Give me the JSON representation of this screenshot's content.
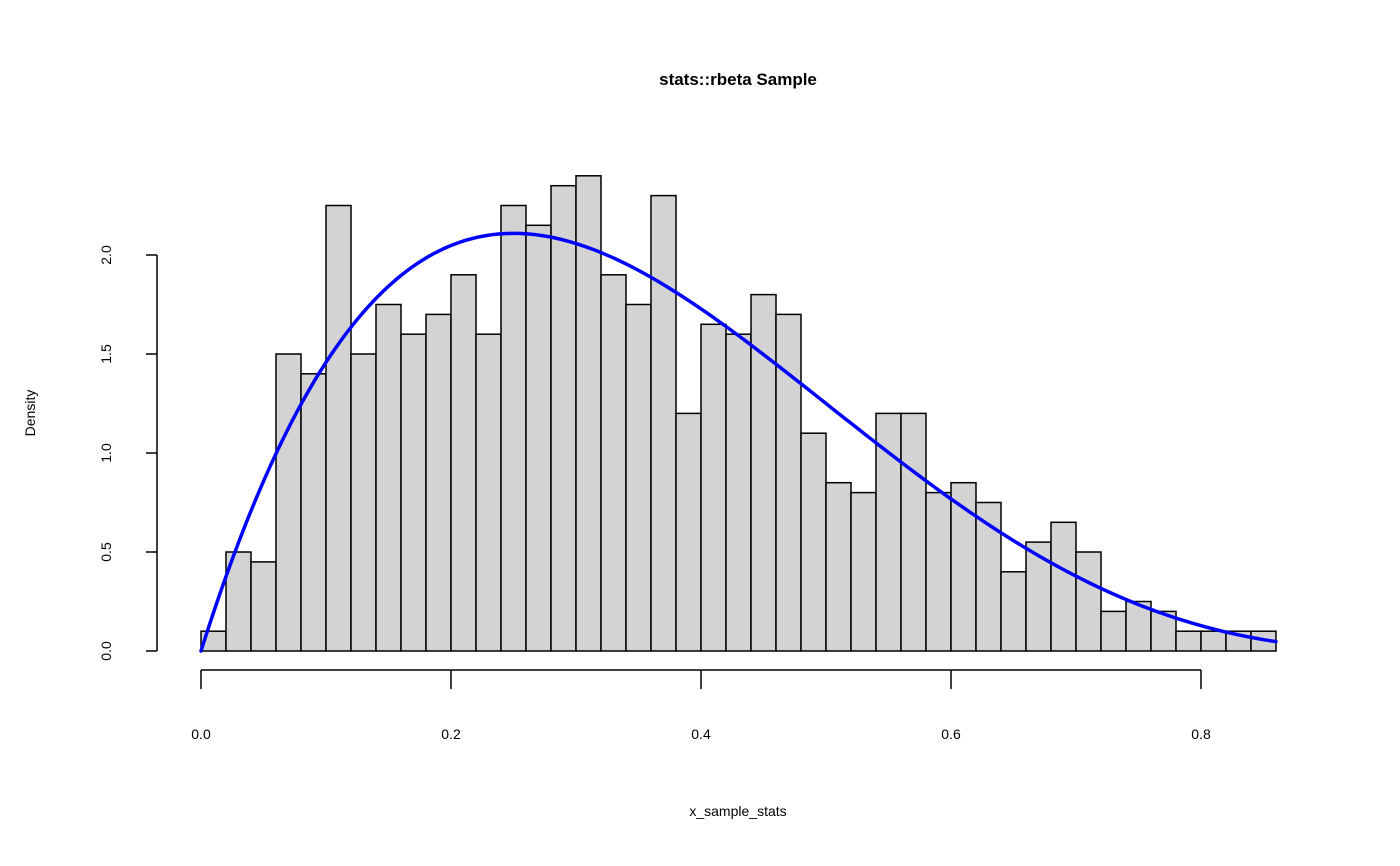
{
  "chart_data": {
    "type": "bar",
    "title": "stats::rbeta Sample",
    "xlabel": "x_sample_stats",
    "ylabel": "Density",
    "xlim": [
      0,
      0.86
    ],
    "ylim": [
      0,
      2.0
    ],
    "bin_width": 0.02,
    "bin_starts": [
      0.0,
      0.02,
      0.04,
      0.06,
      0.08,
      0.1,
      0.12,
      0.14,
      0.16,
      0.18,
      0.2,
      0.22,
      0.24,
      0.26,
      0.28,
      0.3,
      0.32,
      0.34,
      0.36,
      0.38,
      0.4,
      0.42,
      0.44,
      0.46,
      0.48,
      0.5,
      0.52,
      0.54,
      0.56,
      0.58,
      0.6,
      0.62,
      0.64,
      0.66,
      0.68,
      0.7,
      0.72,
      0.74,
      0.76,
      0.78,
      0.8,
      0.82,
      0.84
    ],
    "values": [
      0.1,
      0.5,
      0.45,
      1.5,
      1.4,
      2.25,
      1.5,
      1.75,
      1.6,
      1.7,
      1.9,
      1.6,
      2.25,
      2.15,
      2.35,
      2.4,
      1.9,
      1.75,
      2.3,
      1.2,
      1.65,
      1.6,
      1.8,
      1.7,
      1.1,
      0.85,
      0.8,
      1.2,
      1.2,
      0.8,
      0.85,
      0.75,
      0.4,
      0.55,
      0.65,
      0.5,
      0.2,
      0.25,
      0.2,
      0.1,
      0.1,
      0.1,
      0.1
    ],
    "x_ticks": [
      "0.0",
      "0.2",
      "0.4",
      "0.6",
      "0.8"
    ],
    "y_ticks": [
      "0.0",
      "0.5",
      "1.0",
      "1.5",
      "2.0"
    ],
    "bar_fill": "#d3d3d3",
    "bar_stroke": "#000000",
    "curve": {
      "color": "#0000ff",
      "shape_a": 2,
      "shape_b": 4,
      "x": [
        0.0,
        0.02,
        0.05,
        0.08,
        0.1,
        0.12,
        0.15,
        0.18,
        0.2,
        0.22,
        0.25,
        0.28,
        0.3,
        0.32,
        0.35,
        0.38,
        0.4,
        0.42,
        0.45,
        0.48,
        0.5,
        0.52,
        0.55,
        0.58,
        0.6,
        0.62,
        0.65,
        0.68,
        0.7,
        0.72,
        0.75,
        0.78,
        0.8,
        0.82,
        0.84,
        0.86
      ],
      "y": [
        0.0,
        0.377,
        0.857,
        1.248,
        1.458,
        1.625,
        1.842,
        1.97,
        2.048,
        2.1,
        2.109,
        2.062,
        2.058,
        1.957,
        1.848,
        1.695,
        1.728,
        1.443,
        1.338,
        1.253,
        1.25,
        1.053,
        0.819,
        0.767,
        0.768,
        0.509,
        0.42,
        0.457,
        0.54,
        0.215,
        0.234,
        0.147,
        0.16,
        0.056,
        0.082,
        0.044
      ]
    }
  }
}
